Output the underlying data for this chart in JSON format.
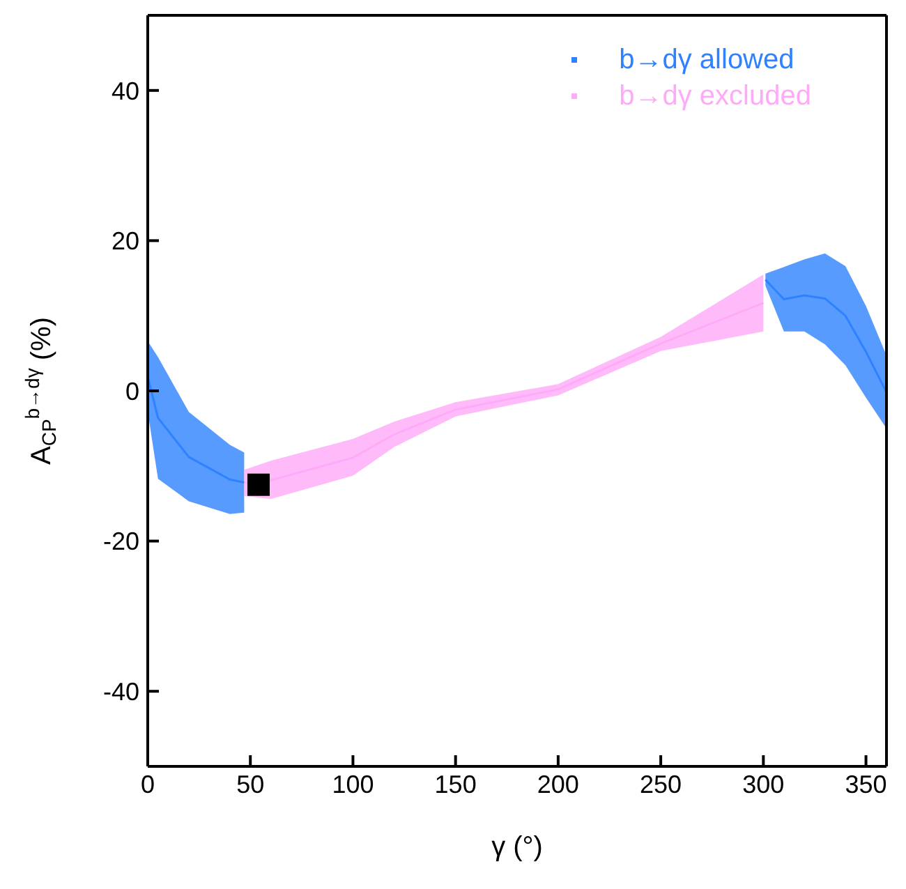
{
  "chart_data": {
    "type": "line",
    "xlabel": "γ (°)",
    "ylabel": "A$_{CP}$$^{b→dγ}$ (%)",
    "xlim": [
      0,
      360
    ],
    "xticks": [
      0,
      50,
      100,
      150,
      200,
      250,
      300,
      350
    ],
    "ylim": [
      -50,
      50
    ],
    "yticks": [
      -40,
      -20,
      0,
      20,
      40
    ],
    "grid": false,
    "legend": "top right",
    "series": [
      {
        "name": "b→dγ allowed",
        "color": "#2e82ff",
        "x": [
          0,
          5,
          20,
          40,
          47
        ],
        "values": [
          1.9,
          -3.6,
          -8.8,
          -11.8,
          -12.2
        ],
        "lower": [
          -2.8,
          -11.7,
          -14.7,
          -16.4,
          -16.2
        ],
        "upper": [
          6.6,
          4.5,
          -2.8,
          -7.2,
          -8.2
        ]
      },
      {
        "color": "#2e82ff",
        "x": [
          301,
          310,
          320,
          330,
          340,
          350,
          360
        ],
        "values": [
          14.8,
          12.2,
          12.7,
          12.3,
          10,
          5.2,
          -0.2
        ],
        "lower": [
          14,
          7.9,
          7.9,
          6.2,
          3.4,
          -0.9,
          -5
        ],
        "upper": [
          15.6,
          16.5,
          17.5,
          18.3,
          16.6,
          11.3,
          4.7
        ]
      },
      {
        "name": "b→dγ excluded",
        "color": "#ffaaf8",
        "x": [
          47,
          60,
          100,
          120,
          150,
          200,
          250,
          300
        ],
        "values": [
          -12.3,
          -11.9,
          -8.9,
          -5.8,
          -2.5,
          0.2,
          6.3,
          11.7
        ],
        "lower": [
          -14,
          -14.4,
          -11.3,
          -7.5,
          -3.4,
          -0.6,
          5.3,
          7.9
        ],
        "upper": [
          -10.5,
          -9.3,
          -6.4,
          -4.1,
          -1.5,
          0.9,
          7.2,
          15.5
        ]
      },
      {
        "type": "scatter",
        "color": "#000000",
        "marker": "square",
        "x": [
          54
        ],
        "values": [
          -12.5
        ]
      }
    ]
  }
}
